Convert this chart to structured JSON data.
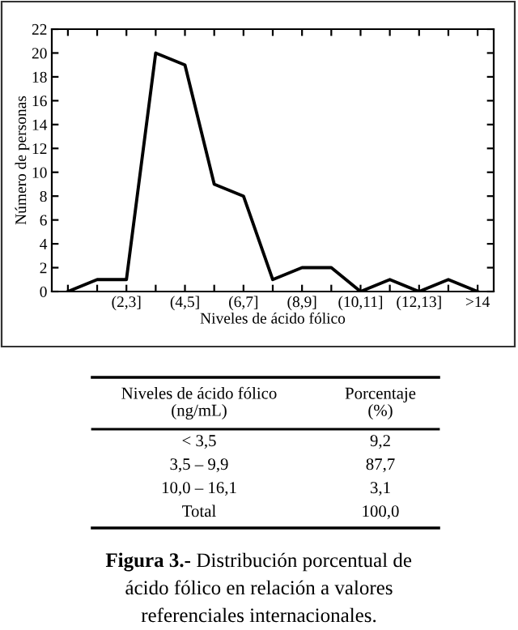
{
  "chart_data": {
    "type": "line",
    "xlabel": "Niveles de ácido fólico",
    "ylabel": "Número de personas",
    "categories": [
      null,
      null,
      "(2,3]",
      null,
      "(4,5]",
      null,
      "(6,7]",
      null,
      "(8,9]",
      null,
      "(10,11]",
      null,
      "(12,13]",
      null,
      ">14"
    ],
    "series": [
      {
        "color": "#000000",
        "values": [
          0,
          1,
          1,
          20,
          19,
          9,
          8,
          1,
          2,
          2,
          0,
          1,
          0,
          1,
          0
        ]
      }
    ],
    "ylim": [
      0,
      22
    ],
    "yticks": [
      0,
      2,
      4,
      6,
      8,
      10,
      12,
      14,
      16,
      18,
      20,
      22
    ],
    "grid": false,
    "legend": false,
    "marker": "none",
    "line_style": "solid",
    "annotations": [
      "Niveles de ácido fólico\n(ng/mL)",
      "Porcentaje\n(%)",
      "< 3,5",
      "9,2",
      "3,5 – 9,9",
      "87,7",
      "10,0 – 16,1",
      "3,1",
      "Total",
      "100,0",
      "Figura 3.-",
      "Distribución porcentual de\nácido fólico en relación a valores\nreferenciales internacionales."
    ]
  }
}
